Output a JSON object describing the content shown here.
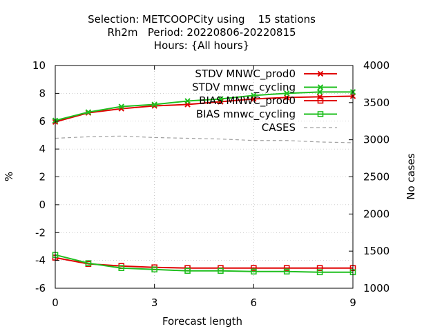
{
  "chart_data": {
    "type": "line",
    "title_lines": [
      "Selection: METCOOPCity using    15 stations",
      "Rh2m   Period: 20220806-20220815",
      "Hours: {All hours}"
    ],
    "xlabel": "Forecast length",
    "ylabel": "%",
    "y2label": "No cases",
    "xlim": [
      0,
      9
    ],
    "ylim": [
      -6,
      10
    ],
    "y2lim": [
      1000,
      4000
    ],
    "x_ticks": [
      0,
      3,
      6,
      9
    ],
    "y_ticks": [
      -6,
      -4,
      -2,
      0,
      2,
      4,
      6,
      8,
      10
    ],
    "y2_ticks": [
      1000,
      1500,
      2000,
      2500,
      3000,
      3500,
      4000
    ],
    "x": [
      0,
      1,
      2,
      3,
      4,
      5,
      6,
      7,
      8,
      9
    ],
    "legend_position": "top-right",
    "series": [
      {
        "name": "STDV MNWC_prod0",
        "axis": "y",
        "color": "#e00000",
        "marker": "x",
        "values": [
          5.95,
          6.6,
          6.9,
          7.1,
          7.2,
          7.4,
          7.6,
          7.7,
          7.75,
          7.8
        ]
      },
      {
        "name": "STDV mnwc_cycling",
        "axis": "y",
        "color": "#1fbf1f",
        "marker": "x",
        "values": [
          6.05,
          6.65,
          7.05,
          7.2,
          7.45,
          7.6,
          7.85,
          8.0,
          8.1,
          8.1
        ]
      },
      {
        "name": "BIAS MNWC_prod0",
        "axis": "y",
        "color": "#e00000",
        "marker": "square",
        "values": [
          -3.8,
          -4.25,
          -4.4,
          -4.5,
          -4.55,
          -4.55,
          -4.55,
          -4.55,
          -4.55,
          -4.55
        ]
      },
      {
        "name": "BIAS mnwc_cycling",
        "axis": "y",
        "color": "#1fbf1f",
        "marker": "square",
        "values": [
          -3.6,
          -4.2,
          -4.55,
          -4.65,
          -4.75,
          -4.75,
          -4.8,
          -4.8,
          -4.85,
          -4.85
        ]
      },
      {
        "name": "CASES",
        "axis": "y2",
        "color": "#a0a0a0",
        "marker": "none",
        "dashed": true,
        "values": [
          3020,
          3040,
          3050,
          3030,
          3020,
          3010,
          2990,
          2990,
          2970,
          2960
        ]
      }
    ]
  }
}
